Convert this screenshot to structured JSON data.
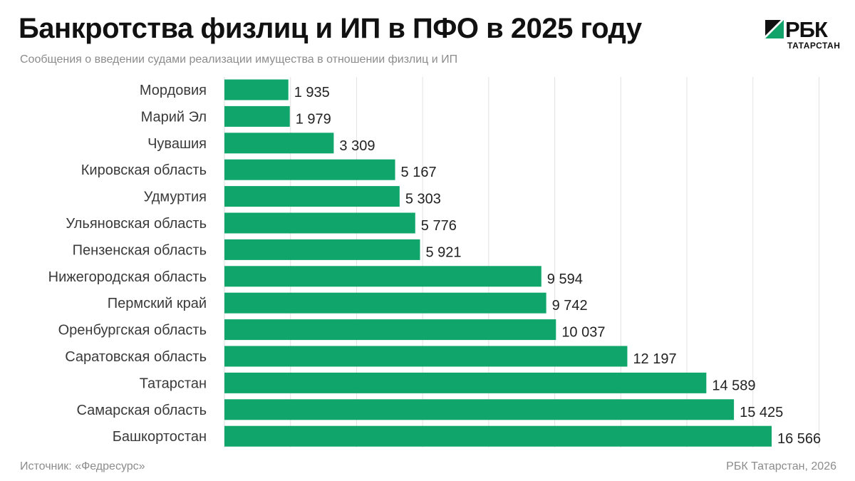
{
  "header": {
    "title": "Банкротства физлиц и ИП в ПФО в 2025 году",
    "subtitle": "Сообщения о введении судами реализации имущества в отношении физлиц и ИП"
  },
  "logo": {
    "wordmark": "РБК",
    "region": "ТАТАРСТАН"
  },
  "footer": {
    "source": "Источник: «Федресурс»",
    "credit": "РБК Татарстан, 2026"
  },
  "colors": {
    "bar": "#10a66b",
    "grid": "#e2e2e2",
    "logo_accent": "#12a36b"
  },
  "icons": {
    "logo_mark": "rbc-logo-icon"
  },
  "chart_data": {
    "type": "bar",
    "orientation": "horizontal",
    "title": "Банкротства физлиц и ИП в ПФО в 2025 году",
    "subtitle": "Сообщения о введении судами реализации имущества в отношении физлиц и ИП",
    "xlabel": "",
    "ylabel": "",
    "xlim": [
      0,
      18000
    ],
    "grid": true,
    "categories": [
      "Мордовия",
      "Марий Эл",
      "Чувашия",
      "Кировская область",
      "Удмуртия",
      "Ульяновская область",
      "Пензенская область",
      "Нижегородская область",
      "Пермский край",
      "Оренбургская область",
      "Саратовская область",
      "Татарстан",
      "Самарская область",
      "Башкортостан"
    ],
    "values": [
      1935,
      1979,
      3309,
      5167,
      5303,
      5776,
      5921,
      9594,
      9742,
      10037,
      12197,
      14589,
      15425,
      16566
    ],
    "value_labels": [
      "1 935",
      "1 979",
      "3 309",
      "5 167",
      "5 303",
      "5 776",
      "5 921",
      "9 594",
      "9 742",
      "10 037",
      "12 197",
      "14 589",
      "15 425",
      "16 566"
    ]
  }
}
